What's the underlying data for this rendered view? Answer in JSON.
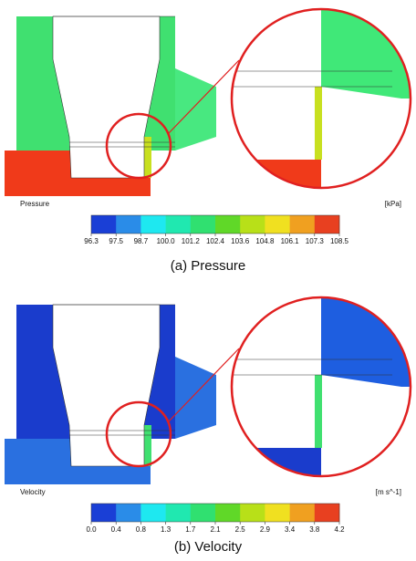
{
  "panels": [
    {
      "variable": "Pressure",
      "unit": "[kPa]",
      "caption": "(a) Pressure",
      "colorbar": {
        "labels": [
          "96.3",
          "97.5",
          "98.7",
          "100.0",
          "101.2",
          "102.4",
          "103.6",
          "104.8",
          "106.1",
          "107.3",
          "108.5"
        ],
        "colors": [
          "#1a3fd6",
          "#2a8ce8",
          "#1ee8f0",
          "#20e8b0",
          "#30e070",
          "#60d828",
          "#b8e018",
          "#f0e020",
          "#f0a020",
          "#e84020"
        ]
      }
    },
    {
      "variable": "Velocity",
      "unit": "[m s^-1]",
      "caption": "(b) Velocity",
      "colorbar": {
        "labels": [
          "0.0",
          "0.4",
          "0.8",
          "1.3",
          "1.7",
          "2.1",
          "2.5",
          "2.9",
          "3.4",
          "3.8",
          "4.2"
        ],
        "colors": [
          "#1a3fd6",
          "#2a8ce8",
          "#1ee8f0",
          "#20e8b0",
          "#30e070",
          "#60d828",
          "#b8e018",
          "#f0e020",
          "#f0a020",
          "#e84020"
        ]
      }
    }
  ]
}
